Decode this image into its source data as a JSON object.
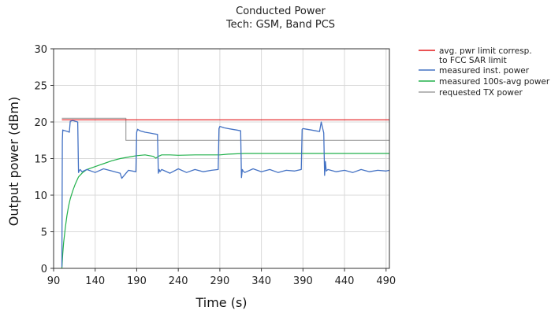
{
  "chart_data": {
    "type": "line",
    "title": "Conducted Power",
    "subtitle": "Tech: GSM, Band PCS",
    "xlabel": "Time (s)",
    "ylabel": "Output power (dBm)",
    "xlim": [
      90,
      494
    ],
    "ylim": [
      0,
      30
    ],
    "x_ticks": [
      90,
      140,
      190,
      240,
      290,
      340,
      390,
      440,
      490
    ],
    "y_ticks": [
      0,
      5,
      10,
      15,
      20,
      25,
      30
    ],
    "grid": true,
    "legend_position": "top-right, outside plot",
    "series": [
      {
        "name": "avg. pwr limit corresp. to FCC SAR limit",
        "color": "#e41a1c",
        "x": [
          100,
          494
        ],
        "y": [
          20.3,
          20.3
        ]
      },
      {
        "name": "measured inst. power",
        "color": "#4472c4",
        "x": [
          100,
          100.5,
          101,
          104,
          107,
          109,
          110,
          113,
          116,
          119,
          120,
          121,
          122,
          124,
          130,
          140,
          150,
          160,
          170,
          172,
          180,
          189,
          190,
          191,
          194,
          200,
          205,
          210,
          215,
          216,
          217,
          218,
          220,
          230,
          240,
          250,
          260,
          270,
          280,
          288,
          289,
          290,
          295,
          300,
          305,
          310,
          315,
          316,
          317,
          318,
          320,
          330,
          340,
          350,
          360,
          370,
          380,
          388,
          389,
          390,
          395,
          400,
          405,
          410,
          412,
          415,
          416,
          417,
          418,
          420,
          430,
          440,
          450,
          460,
          470,
          480,
          490,
          494
        ],
        "y": [
          0.2,
          17.5,
          18.9,
          18.8,
          18.7,
          18.6,
          20.1,
          20.2,
          20.1,
          20.0,
          13.1,
          13.4,
          13.5,
          13.2,
          13.5,
          13.1,
          13.6,
          13.3,
          13.0,
          12.3,
          13.4,
          13.2,
          18.6,
          19.0,
          18.8,
          18.6,
          18.5,
          18.4,
          18.3,
          13.0,
          13.5,
          13.2,
          13.5,
          13.0,
          13.6,
          13.1,
          13.5,
          13.2,
          13.4,
          13.5,
          19.1,
          19.4,
          19.2,
          19.1,
          19.0,
          18.9,
          18.8,
          12.4,
          13.5,
          13.3,
          13.1,
          13.6,
          13.2,
          13.5,
          13.1,
          13.4,
          13.3,
          13.5,
          19.0,
          19.1,
          19.0,
          18.9,
          18.8,
          18.7,
          20.0,
          18.5,
          12.7,
          14.6,
          13.3,
          13.5,
          13.2,
          13.4,
          13.1,
          13.5,
          13.2,
          13.4,
          13.3,
          13.4
        ]
      },
      {
        "name": "measured 100s-avg power",
        "color": "#22b14c",
        "x": [
          100,
          101,
          102,
          104,
          106,
          108,
          110,
          113,
          116,
          120,
          125,
          130,
          140,
          150,
          160,
          170,
          180,
          190,
          200,
          210,
          213,
          216,
          220,
          230,
          240,
          260,
          290,
          300,
          320,
          340,
          360,
          400,
          440,
          494
        ],
        "y": [
          0,
          2.0,
          3.5,
          5.5,
          7.2,
          8.5,
          9.5,
          10.6,
          11.5,
          12.5,
          13.1,
          13.5,
          13.9,
          14.3,
          14.7,
          15.0,
          15.2,
          15.4,
          15.5,
          15.3,
          15.05,
          15.3,
          15.5,
          15.5,
          15.45,
          15.5,
          15.5,
          15.6,
          15.7,
          15.7,
          15.7,
          15.7,
          15.7,
          15.7
        ]
      },
      {
        "name": "requested TX power",
        "color": "#a0a0a0",
        "x": [
          100,
          177,
          177,
          494
        ],
        "y": [
          20.5,
          20.5,
          17.5,
          17.5
        ]
      }
    ]
  }
}
